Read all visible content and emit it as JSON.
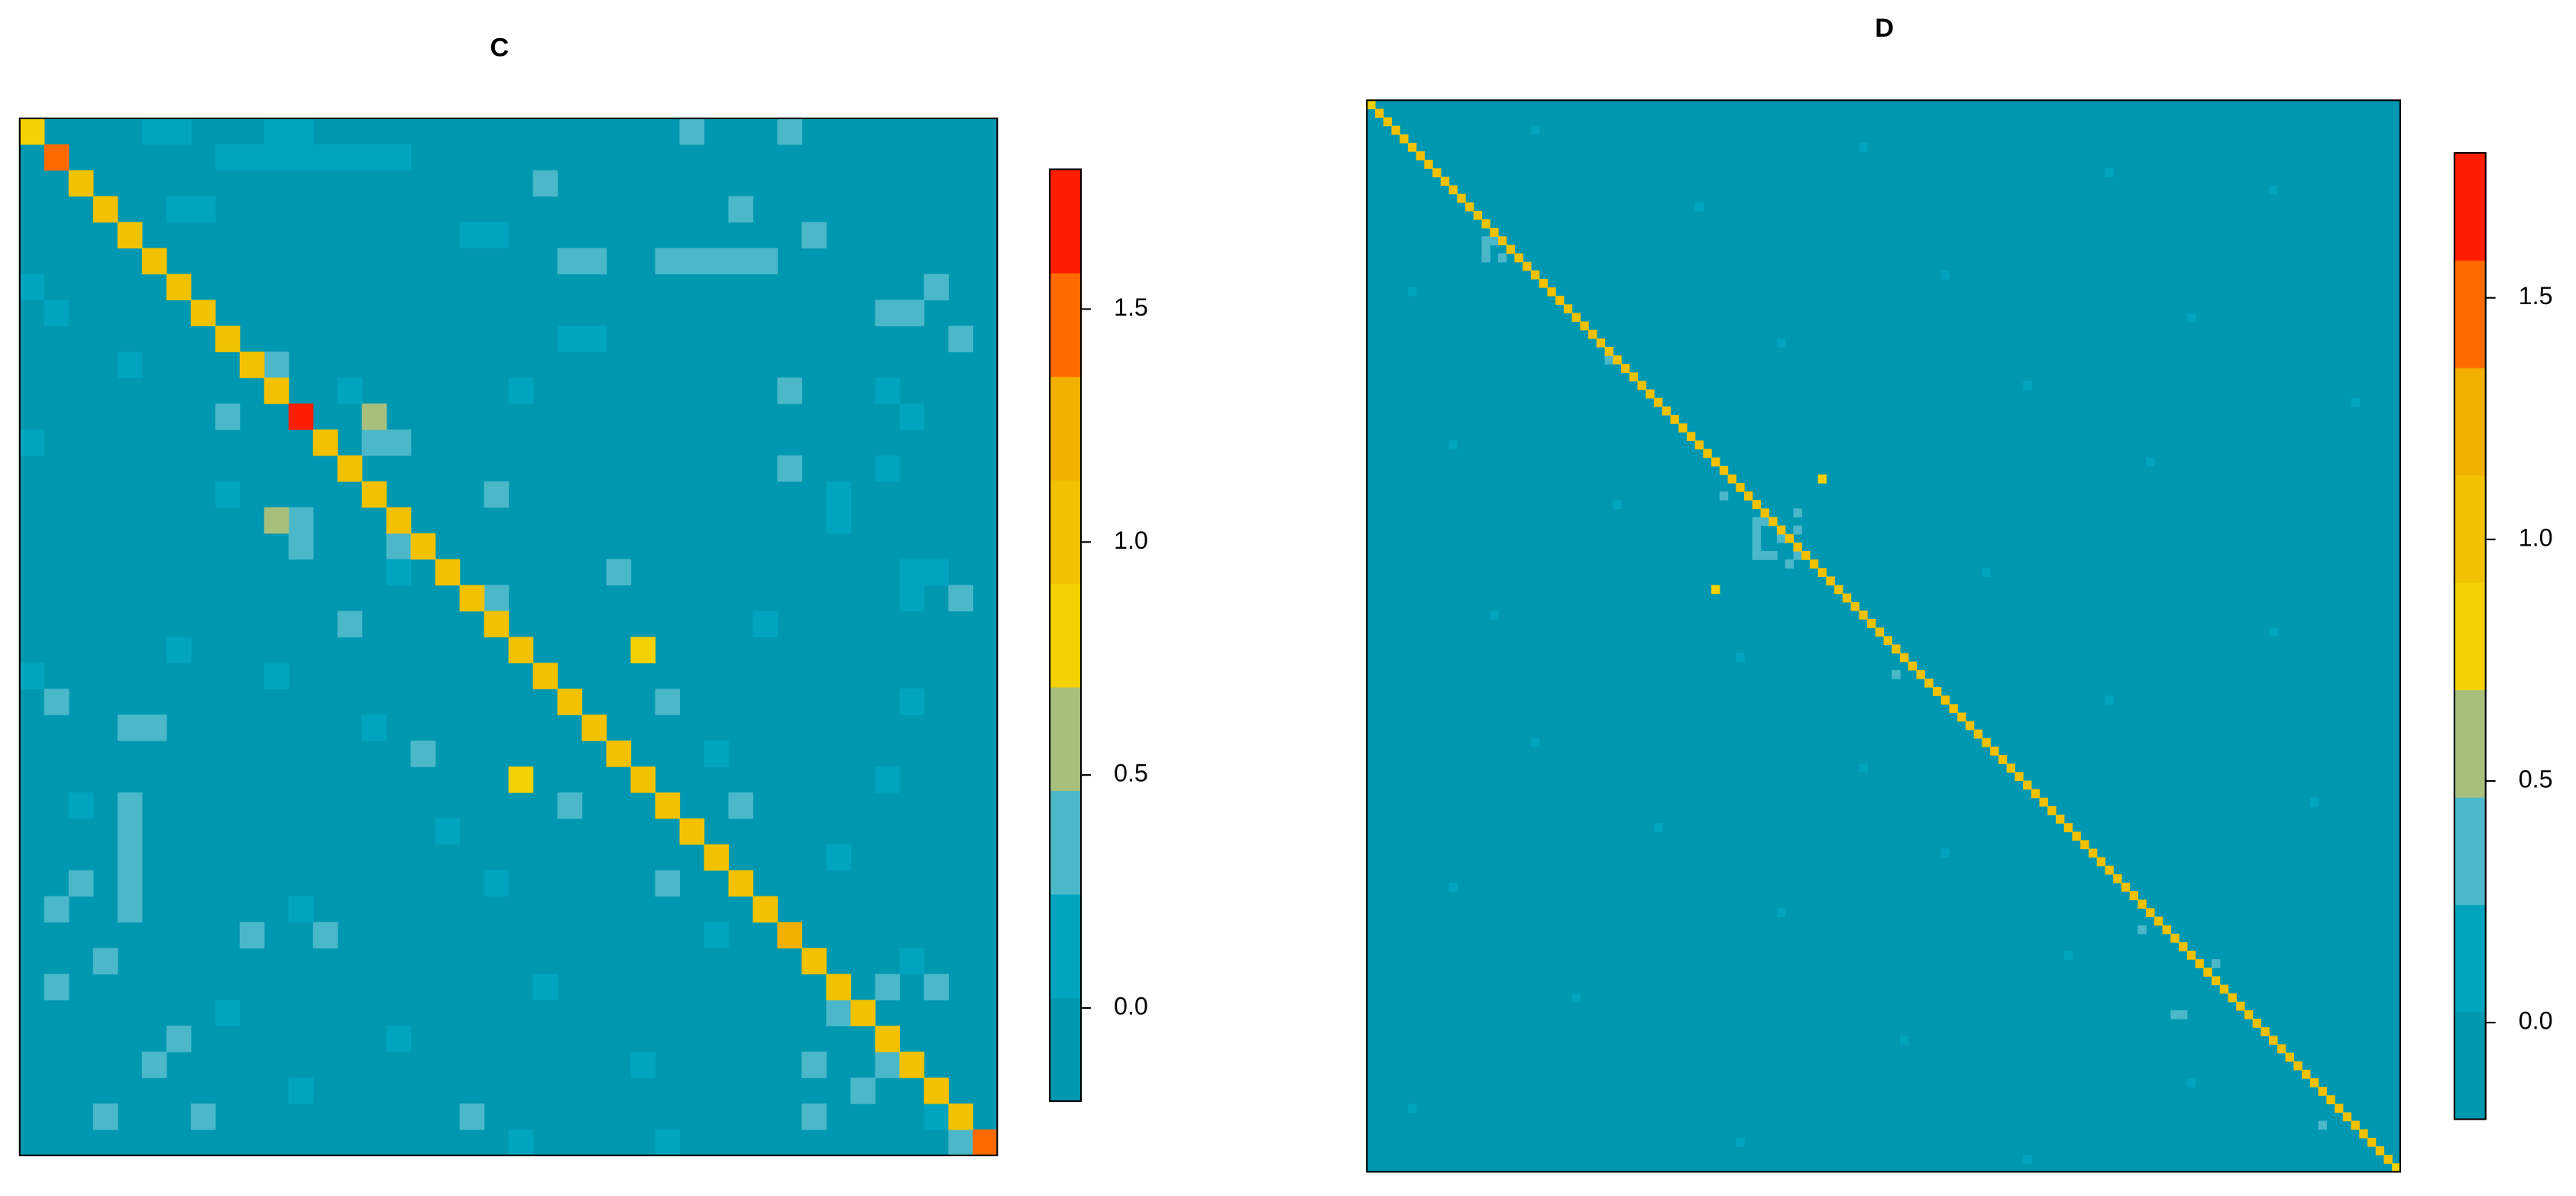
{
  "chart_data": [
    {
      "type": "heatmap",
      "title": "C",
      "base_value": 0,
      "diagonal": [
        0.9,
        1.4,
        1.1,
        1.1,
        1.1,
        1.1,
        1.1,
        1.1,
        1.1,
        1.1,
        1.1,
        1.7,
        1.1,
        1.1,
        1.1,
        1.1,
        1.1,
        1.1,
        1.1,
        1.1,
        1.1,
        1.1,
        1.1,
        1.1,
        1.1,
        1.1,
        1.1,
        1.1,
        1.1,
        1.1,
        1.1,
        1.2,
        1.1,
        1.1,
        1.1,
        1.1,
        1.1,
        1.1,
        1.1,
        1.4
      ],
      "cells": [
        [
          0,
          27,
          0.3
        ],
        [
          0,
          31,
          0.3
        ],
        [
          2,
          21,
          0.3
        ],
        [
          3,
          29,
          0.3
        ],
        [
          4,
          32,
          0.3
        ],
        [
          5,
          22,
          0.3
        ],
        [
          5,
          23,
          0.3
        ],
        [
          5,
          26,
          0.3
        ],
        [
          5,
          27,
          0.3
        ],
        [
          5,
          28,
          0.3
        ],
        [
          5,
          29,
          0.3
        ],
        [
          5,
          30,
          0.3
        ],
        [
          6,
          37,
          0.3
        ],
        [
          7,
          35,
          0.3
        ],
        [
          7,
          36,
          0.3
        ],
        [
          8,
          38,
          0.3
        ],
        [
          9,
          10,
          0.3
        ],
        [
          10,
          31,
          0.3
        ],
        [
          11,
          8,
          0.3
        ],
        [
          12,
          14,
          0.3
        ],
        [
          12,
          15,
          0.3
        ],
        [
          13,
          31,
          0.3
        ],
        [
          14,
          19,
          0.3
        ],
        [
          15,
          11,
          0.3
        ],
        [
          16,
          11,
          0.3
        ],
        [
          16,
          15,
          0.3
        ],
        [
          17,
          24,
          0.3
        ],
        [
          18,
          19,
          0.3
        ],
        [
          18,
          38,
          0.3
        ],
        [
          19,
          13,
          0.3
        ],
        [
          22,
          1,
          0.3
        ],
        [
          22,
          26,
          0.3
        ],
        [
          23,
          4,
          0.3
        ],
        [
          23,
          5,
          0.3
        ],
        [
          24,
          16,
          0.3
        ],
        [
          26,
          22,
          0.3
        ],
        [
          26,
          29,
          0.3
        ],
        [
          26,
          4,
          0.3
        ],
        [
          27,
          4,
          0.3
        ],
        [
          28,
          4,
          0.3
        ],
        [
          29,
          4,
          0.3
        ],
        [
          30,
          4,
          0.3
        ],
        [
          29,
          2,
          0.3
        ],
        [
          30,
          1,
          0.3
        ],
        [
          29,
          26,
          0.3
        ],
        [
          31,
          9,
          0.3
        ],
        [
          31,
          12,
          0.3
        ],
        [
          32,
          3,
          0.3
        ],
        [
          33,
          1,
          0.3
        ],
        [
          33,
          35,
          0.3
        ],
        [
          33,
          37,
          0.3
        ],
        [
          34,
          33,
          0.3
        ],
        [
          35,
          6,
          0.3
        ],
        [
          36,
          5,
          0.3
        ],
        [
          36,
          32,
          0.3
        ],
        [
          36,
          35,
          0.3
        ],
        [
          37,
          34,
          0.3
        ],
        [
          38,
          3,
          0.3
        ],
        [
          38,
          7,
          0.3
        ],
        [
          38,
          18,
          0.3
        ],
        [
          38,
          32,
          0.3
        ],
        [
          39,
          38,
          0.3
        ],
        [
          11,
          14,
          0.6
        ],
        [
          15,
          10,
          0.6
        ],
        [
          20,
          25,
          0.9
        ],
        [
          25,
          20,
          0.9
        ],
        [
          0,
          5,
          0.1
        ],
        [
          0,
          6,
          0.1
        ],
        [
          0,
          10,
          0.1
        ],
        [
          0,
          11,
          0.1
        ],
        [
          1,
          8,
          0.1
        ],
        [
          1,
          9,
          0.1
        ],
        [
          1,
          10,
          0.1
        ],
        [
          1,
          11,
          0.1
        ],
        [
          1,
          12,
          0.1
        ],
        [
          1,
          13,
          0.1
        ],
        [
          1,
          14,
          0.1
        ],
        [
          1,
          15,
          0.1
        ],
        [
          3,
          6,
          0.1
        ],
        [
          3,
          7,
          0.1
        ],
        [
          4,
          18,
          0.1
        ],
        [
          4,
          19,
          0.1
        ],
        [
          6,
          0,
          0.1
        ],
        [
          7,
          1,
          0.1
        ],
        [
          8,
          22,
          0.1
        ],
        [
          8,
          23,
          0.1
        ],
        [
          9,
          4,
          0.1
        ],
        [
          10,
          13,
          0.1
        ],
        [
          10,
          20,
          0.1
        ],
        [
          12,
          0,
          0.1
        ],
        [
          13,
          35,
          0.1
        ],
        [
          14,
          8,
          0.1
        ],
        [
          17,
          15,
          0.1
        ],
        [
          19,
          30,
          0.1
        ],
        [
          20,
          6,
          0.1
        ],
        [
          21,
          10,
          0.1
        ],
        [
          22,
          36,
          0.1
        ],
        [
          23,
          14,
          0.1
        ],
        [
          24,
          28,
          0.1
        ],
        [
          25,
          35,
          0.1
        ],
        [
          26,
          2,
          0.1
        ],
        [
          27,
          17,
          0.1
        ],
        [
          28,
          33,
          0.1
        ],
        [
          29,
          19,
          0.1
        ],
        [
          30,
          11,
          0.1
        ],
        [
          31,
          28,
          0.1
        ],
        [
          32,
          36,
          0.1
        ],
        [
          33,
          21,
          0.1
        ],
        [
          34,
          8,
          0.1
        ],
        [
          35,
          15,
          0.1
        ],
        [
          36,
          25,
          0.1
        ],
        [
          37,
          11,
          0.1
        ],
        [
          38,
          37,
          0.1
        ],
        [
          39,
          20,
          0.1
        ],
        [
          39,
          26,
          0.1
        ],
        [
          17,
          36,
          0.1
        ],
        [
          17,
          37,
          0.1
        ],
        [
          18,
          36,
          0.1
        ],
        [
          21,
          0,
          0.1
        ],
        [
          14,
          33,
          0.1
        ],
        [
          15,
          33,
          0.1
        ],
        [
          10,
          35,
          0.1
        ],
        [
          11,
          36,
          0.1
        ]
      ],
      "zlim": [
        -0.2,
        1.8
      ],
      "zticks": [
        {
          "value": 0,
          "label": "0.0"
        },
        {
          "value": 0.5,
          "label": "0.5"
        },
        {
          "value": 1,
          "label": "1.0"
        },
        {
          "value": 1.5,
          "label": "1.5"
        }
      ],
      "colors": [
        "#0097b1",
        "#00a4bf",
        "#4bb8c9",
        "#a6c07c",
        "#f4d100",
        "#f2c100",
        "#f2b000",
        "#ff6a00",
        "#ff1f00"
      ]
    },
    {
      "type": "heatmap",
      "title": "D",
      "base_value": 0,
      "diagonal": [
        0.9,
        1,
        1,
        1,
        1,
        1,
        1,
        1,
        1,
        1,
        1,
        1,
        1,
        1,
        1,
        1,
        1,
        1,
        1,
        1,
        1,
        1,
        1,
        1,
        1,
        1,
        1,
        1,
        1,
        1,
        1,
        1,
        1,
        1,
        1,
        1,
        1,
        1,
        1,
        1,
        1,
        1,
        1,
        1,
        1,
        1,
        1,
        1,
        1,
        1,
        1,
        1,
        1,
        1,
        1,
        1,
        1,
        1,
        1,
        1,
        1,
        1,
        1,
        1,
        1,
        1,
        1,
        1,
        1,
        1,
        1,
        1,
        1,
        1,
        1,
        1,
        1,
        1,
        1,
        1,
        1,
        1,
        1,
        1,
        1,
        1,
        1,
        1,
        1,
        1,
        1,
        1,
        1,
        1,
        1,
        1,
        1,
        1,
        1,
        1,
        1,
        1,
        1,
        1,
        1,
        1,
        1,
        1,
        1,
        1,
        1,
        1,
        1,
        1,
        1,
        1,
        1,
        1,
        1,
        1,
        1,
        1,
        1,
        1,
        1,
        0.9
      ],
      "cells": [
        [
          44,
          55,
          0.9
        ],
        [
          57,
          42,
          0.9
        ],
        [
          16,
          14,
          0.3
        ],
        [
          16,
          15,
          0.3
        ],
        [
          17,
          14,
          0.3
        ],
        [
          18,
          14,
          0.3
        ],
        [
          18,
          16,
          0.3
        ],
        [
          46,
          43,
          0.3
        ],
        [
          49,
          47,
          0.3
        ],
        [
          49,
          48,
          0.3
        ],
        [
          50,
          47,
          0.3
        ],
        [
          51,
          47,
          0.3
        ],
        [
          51,
          50,
          0.3
        ],
        [
          52,
          47,
          0.3
        ],
        [
          53,
          47,
          0.3
        ],
        [
          53,
          48,
          0.3
        ],
        [
          53,
          49,
          0.3
        ],
        [
          53,
          52,
          0.3
        ],
        [
          54,
          51,
          0.3
        ],
        [
          50,
          52,
          0.3
        ],
        [
          48,
          52,
          0.3
        ],
        [
          67,
          64,
          0.3
        ],
        [
          97,
          94,
          0.3
        ],
        [
          101,
          103,
          0.3
        ],
        [
          107,
          98,
          0.3
        ],
        [
          107,
          99,
          0.3
        ],
        [
          120,
          116,
          0.3
        ],
        [
          30,
          29,
          0.3
        ],
        [
          3,
          20,
          0.1
        ],
        [
          5,
          60,
          0.1
        ],
        [
          8,
          90,
          0.1
        ],
        [
          10,
          110,
          0.1
        ],
        [
          12,
          40,
          0.1
        ],
        [
          20,
          70,
          0.1
        ],
        [
          22,
          5,
          0.1
        ],
        [
          25,
          100,
          0.1
        ],
        [
          28,
          50,
          0.1
        ],
        [
          33,
          80,
          0.1
        ],
        [
          35,
          120,
          0.1
        ],
        [
          40,
          10,
          0.1
        ],
        [
          42,
          95,
          0.1
        ],
        [
          47,
          30,
          0.1
        ],
        [
          55,
          75,
          0.1
        ],
        [
          60,
          15,
          0.1
        ],
        [
          62,
          110,
          0.1
        ],
        [
          65,
          45,
          0.1
        ],
        [
          70,
          90,
          0.1
        ],
        [
          75,
          20,
          0.1
        ],
        [
          78,
          60,
          0.1
        ],
        [
          82,
          115,
          0.1
        ],
        [
          85,
          35,
          0.1
        ],
        [
          88,
          70,
          0.1
        ],
        [
          92,
          10,
          0.1
        ],
        [
          95,
          50,
          0.1
        ],
        [
          100,
          85,
          0.1
        ],
        [
          105,
          25,
          0.1
        ],
        [
          110,
          65,
          0.1
        ],
        [
          115,
          100,
          0.1
        ],
        [
          118,
          5,
          0.1
        ],
        [
          122,
          45,
          0.1
        ],
        [
          124,
          80,
          0.1
        ]
      ],
      "zlim": [
        -0.2,
        1.8
      ],
      "zticks": [
        {
          "value": 0,
          "label": "0.0"
        },
        {
          "value": 0.5,
          "label": "0.5"
        },
        {
          "value": 1,
          "label": "1.0"
        },
        {
          "value": 1.5,
          "label": "1.5"
        }
      ],
      "colors": [
        "#0097b1",
        "#00a4bf",
        "#4bb8c9",
        "#a6c07c",
        "#f4d100",
        "#f2c100",
        "#f2b000",
        "#ff6a00",
        "#ff1f00"
      ]
    }
  ]
}
